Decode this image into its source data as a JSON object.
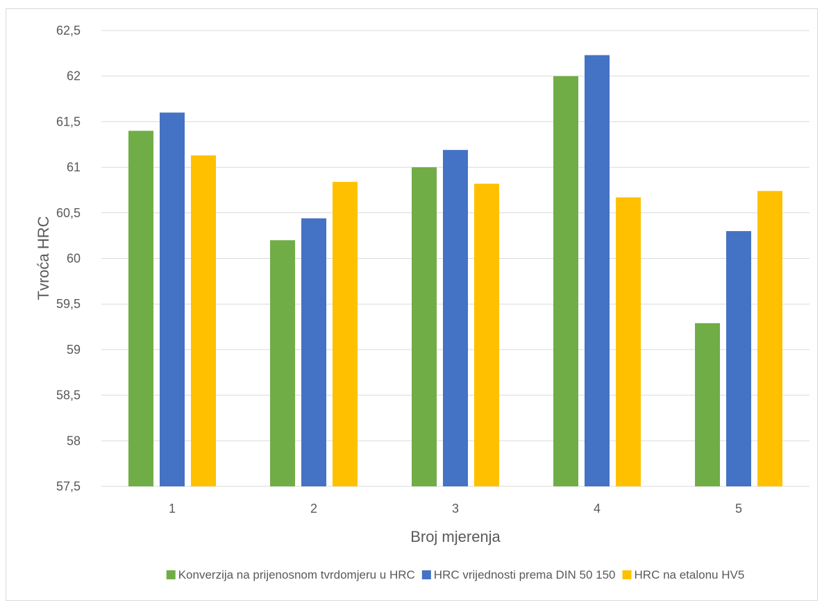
{
  "chart_data": {
    "type": "bar",
    "title": "",
    "xlabel": "Broj mjerenja",
    "ylabel": "Tvroća HRC",
    "categories": [
      "1",
      "2",
      "3",
      "4",
      "5"
    ],
    "yticks": [
      "57,5",
      "58",
      "58,5",
      "59",
      "59,5",
      "60",
      "60,5",
      "61",
      "61,5",
      "62",
      "62,5"
    ],
    "ylim": [
      57.5,
      62.5
    ],
    "ystep": 0.5,
    "grid": true,
    "legend_position": "bottom",
    "series": [
      {
        "name": "Konverzija na prijenosnom tvrdomjeru u HRC",
        "color": "#70ad47",
        "values": [
          61.4,
          60.2,
          61.0,
          62.0,
          59.29
        ]
      },
      {
        "name": "HRC vrijednosti prema DIN 50 150",
        "color": "#4472c4",
        "values": [
          61.6,
          60.44,
          61.19,
          62.23,
          60.3
        ]
      },
      {
        "name": "HRC na etalonu HV5",
        "color": "#ffc000",
        "values": [
          61.13,
          60.84,
          60.82,
          60.67,
          60.74
        ]
      }
    ]
  }
}
